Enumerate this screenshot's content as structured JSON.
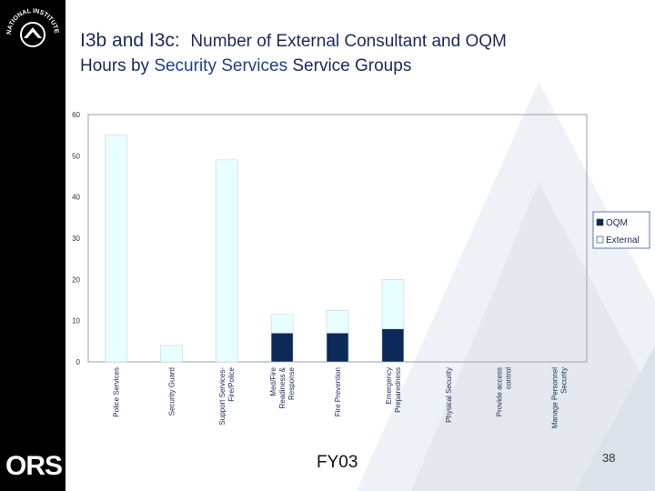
{
  "slide": {
    "title_code": "I3b and I3c:",
    "title_rest": "Number of External Consultant and OQM",
    "title_l2_a": "Hours by",
    "title_l2_hl": "Security Services",
    "title_l2_b": "Service Groups",
    "fiscal_year": "FY03",
    "page_number": "38",
    "logo_top": "NATIONAL INSTITUTES OF HEALTH",
    "logo_bottom": "ORS"
  },
  "chart_data": {
    "type": "bar",
    "stacked": true,
    "title": "",
    "xlabel": "",
    "ylabel": "",
    "ylim": [
      0,
      60
    ],
    "yticks": [
      0,
      10,
      20,
      30,
      40,
      50,
      60
    ],
    "categories": [
      [
        "Police Services"
      ],
      [
        "Security Guard"
      ],
      [
        "Support Services-",
        "Fire/Police"
      ],
      [
        "Med/Fire",
        "Readiness &",
        "Response"
      ],
      [
        "Fire Prevention"
      ],
      [
        "Emergency",
        "Preparedness"
      ],
      [
        "Physical Security"
      ],
      [
        "Provide access",
        "control"
      ],
      [
        "Manage Personnel",
        "Security"
      ]
    ],
    "series": [
      {
        "name": "OQM",
        "color": "#0b2a5a",
        "values": [
          0,
          0,
          0,
          7,
          7,
          8,
          0,
          0,
          0
        ]
      },
      {
        "name": "External",
        "color": "#e8ffff",
        "values": [
          55,
          4,
          49,
          4.5,
          5.5,
          12,
          0,
          0,
          0
        ]
      }
    ],
    "legend": [
      "OQM",
      "External"
    ],
    "legend_position": "right"
  }
}
